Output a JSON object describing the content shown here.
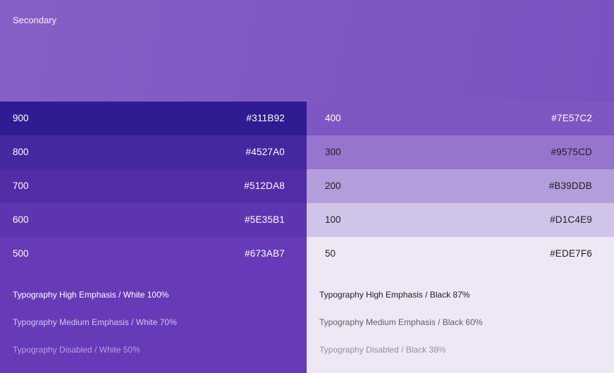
{
  "header": {
    "title": "Secondary",
    "color": "#7E57C2"
  },
  "left_swatches": [
    {
      "label": "900",
      "hex": "#311B92",
      "color": "#311B92",
      "text_color": "#FFFFFF"
    },
    {
      "label": "800",
      "hex": "#4527A0",
      "color": "#4527A0",
      "text_color": "#FFFFFF"
    },
    {
      "label": "700",
      "hex": "#512DA8",
      "color": "#512DA8",
      "text_color": "#FFFFFF"
    },
    {
      "label": "600",
      "hex": "#5E35B1",
      "color": "#5E35B1",
      "text_color": "#FFFFFF"
    },
    {
      "label": "500",
      "hex": "#673AB7",
      "color": "#673AB7",
      "text_color": "#FFFFFF"
    }
  ],
  "right_swatches": [
    {
      "label": "400",
      "hex": "#7E57C2",
      "color": "#7E57C2",
      "text_color": "#FFFFFF"
    },
    {
      "label": "300",
      "hex": "#9575CD",
      "color": "#9575CD",
      "text_color": "#212121"
    },
    {
      "label": "200",
      "hex": "#B39DDB",
      "color": "#B39DDB",
      "text_color": "#212121"
    },
    {
      "label": "100",
      "hex": "#D1C4E9",
      "color": "#D1C4E9",
      "text_color": "#212121"
    },
    {
      "label": "50",
      "hex": "#EDE7F6",
      "color": "#EDE7F6",
      "text_color": "#212121"
    }
  ],
  "typography": {
    "left": {
      "high": "Typography High Emphasis / White 100%",
      "medium": "Typography Medium Emphasis / White 70%",
      "disabled": "Typography Disabled / White 50%"
    },
    "right": {
      "high": "Typography High Emphasis / Black 87%",
      "medium": "Typography Medium Emphasis / Black 60%",
      "disabled": "Typography Disabled / Black 38%"
    }
  }
}
